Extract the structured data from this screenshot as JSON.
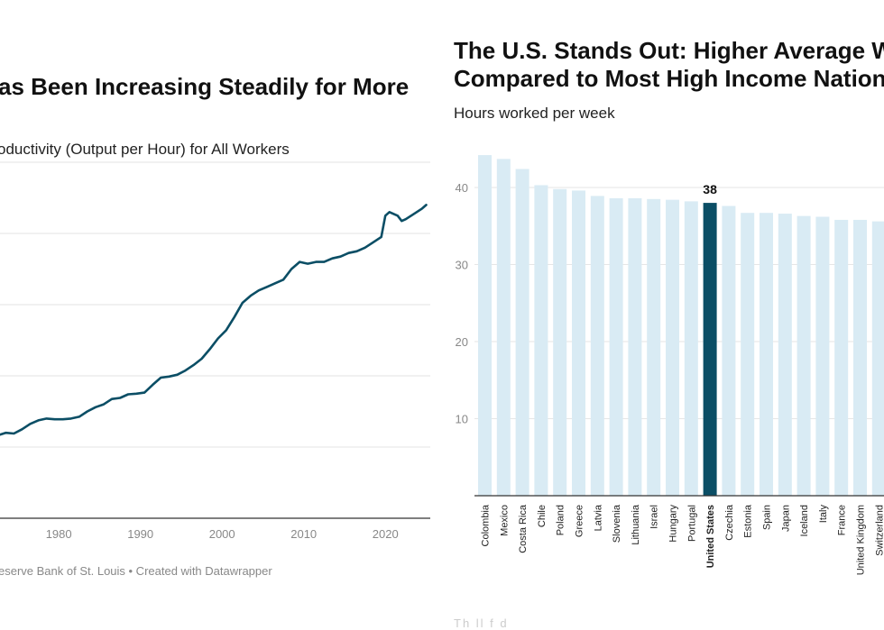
{
  "left_chart": {
    "title": "as Been Increasing Steadily for More",
    "subtitle": "oductivity (Output per Hour) for All Workers",
    "source": "eserve Bank of St. Louis • Created with Datawrapper",
    "line_color": "#0b4e65",
    "grid_color": "#e3e3e3"
  },
  "right_chart": {
    "title_line1": "The U.S. Stands Out: Higher Average W",
    "title_line2": "Compared to Most High Income Nation",
    "subtitle": "Hours worked per week",
    "highlight_label": "38",
    "bar_color": "#d9ebf4",
    "highlight_color": "#0b4e65",
    "footer_fragment": "Th    ll  f           d   "
  },
  "chart_data": [
    {
      "type": "line",
      "title": "as Been Increasing Steadily for More",
      "subtitle": "oductivity (Output per Hour) for All Workers",
      "xlabel": "",
      "ylabel": "",
      "x_ticks": [
        1980,
        1990,
        2000,
        2010,
        2020
      ],
      "xlim": [
        1972.8,
        2025.5
      ],
      "ylim": [
        0,
        100
      ],
      "grid": true,
      "series": [
        {
          "name": "Labor Productivity",
          "x": [
            1972.8,
            1973.5,
            1974.5,
            1975.5,
            1976.5,
            1977.5,
            1978.5,
            1979.5,
            1980.5,
            1981.5,
            1982.5,
            1983.5,
            1984.5,
            1985.5,
            1986.5,
            1987.5,
            1988.5,
            1989.5,
            1990.5,
            1991.5,
            1992.5,
            1993.5,
            1994.5,
            1995.5,
            1996.5,
            1997.5,
            1998.5,
            1999.5,
            2000.5,
            2001.5,
            2002.5,
            2003.5,
            2004.5,
            2005.5,
            2006.5,
            2007.5,
            2008.5,
            2009.5,
            2010.5,
            2011.5,
            2012.5,
            2013.5,
            2014.5,
            2015.5,
            2016.5,
            2017.5,
            2018.5,
            2019.5,
            2020.0,
            2020.5,
            2021.5,
            2022.0,
            2022.5,
            2023.5,
            2024.5,
            2025.0
          ],
          "values": [
            23.5,
            24.0,
            23.8,
            25.0,
            26.5,
            27.5,
            28.0,
            27.8,
            27.8,
            28.0,
            28.5,
            30.0,
            31.2,
            32.0,
            33.5,
            33.8,
            34.8,
            35.0,
            35.3,
            37.5,
            39.5,
            39.8,
            40.3,
            41.5,
            43.0,
            44.8,
            47.5,
            50.5,
            52.8,
            56.5,
            60.5,
            62.5,
            64.0,
            65.0,
            66.0,
            67.0,
            70.0,
            72.0,
            71.5,
            72.0,
            72.0,
            73.0,
            73.5,
            74.5,
            75.0,
            76.0,
            77.5,
            79.0,
            85.0,
            86.0,
            85.0,
            83.5,
            84.0,
            85.5,
            87.0,
            88.0
          ]
        }
      ]
    },
    {
      "type": "bar",
      "title": "The U.S. Stands Out: Higher Average W Compared to Most High Income Nation",
      "subtitle": "Hours worked per week",
      "ylabel": "",
      "xlabel": "",
      "ylim": [
        0,
        44
      ],
      "y_ticks": [
        10,
        20,
        30,
        40
      ],
      "grid": true,
      "categories": [
        "Colombia",
        "Mexico",
        "Costa Rica",
        "Chile",
        "Poland",
        "Greece",
        "Latvia",
        "Slovenia",
        "Lithuania",
        "Israel",
        "Hungary",
        "Portugal",
        "United States",
        "Czechia",
        "Estonia",
        "Spain",
        "Japan",
        "Iceland",
        "Italy",
        "France",
        "United Kingdom",
        "Switzerland"
      ],
      "values": [
        44.2,
        43.7,
        42.4,
        40.3,
        39.8,
        39.6,
        38.9,
        38.6,
        38.6,
        38.5,
        38.4,
        38.2,
        38.0,
        37.6,
        36.7,
        36.7,
        36.6,
        36.3,
        36.2,
        35.8,
        35.8,
        35.6
      ],
      "highlight": "United States"
    }
  ]
}
